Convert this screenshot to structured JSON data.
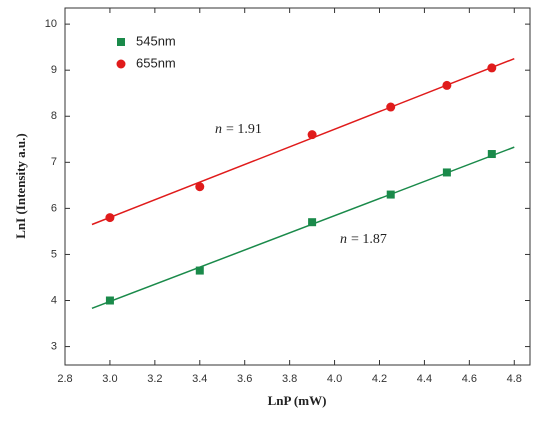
{
  "chart_data": {
    "type": "scatter",
    "x_label": "LnP (mW)",
    "y_label": "LnI (Intensity a.u.)",
    "xlim": [
      2.8,
      4.87
    ],
    "ylim": [
      2.6,
      10.35
    ],
    "xticks": [
      2.8,
      {
        "value": 3,
        "label": "3.0"
      },
      3.2,
      3.4,
      3.6,
      3.8,
      {
        "value": 4,
        "label": "4.0"
      },
      4.2,
      4.4,
      4.6,
      4.8
    ],
    "yticks": [
      3,
      4,
      5,
      6,
      7,
      8,
      9,
      10
    ],
    "series": [
      {
        "name": "545nm",
        "color": "#1a8a4a",
        "marker": "square",
        "x": [
          3.0,
          3.4,
          3.9,
          4.25,
          4.5,
          4.7
        ],
        "values": [
          4.0,
          4.65,
          5.7,
          6.3,
          6.78,
          7.18
        ],
        "fit": {
          "x": [
            2.92,
            4.8
          ],
          "values": [
            3.83,
            7.33
          ]
        },
        "annotation": {
          "symbol": "n",
          "text": "= 1.87"
        }
      },
      {
        "name": "655nm",
        "color": "#e01b1b",
        "marker": "circle",
        "x": [
          3.0,
          3.4,
          3.9,
          4.25,
          4.5,
          4.7
        ],
        "values": [
          5.8,
          6.47,
          7.6,
          8.2,
          8.67,
          9.05
        ],
        "fit": {
          "x": [
            2.92,
            4.8
          ],
          "values": [
            5.65,
            9.25
          ]
        },
        "annotation": {
          "symbol": "n",
          "text": "= 1.91"
        }
      }
    ]
  }
}
